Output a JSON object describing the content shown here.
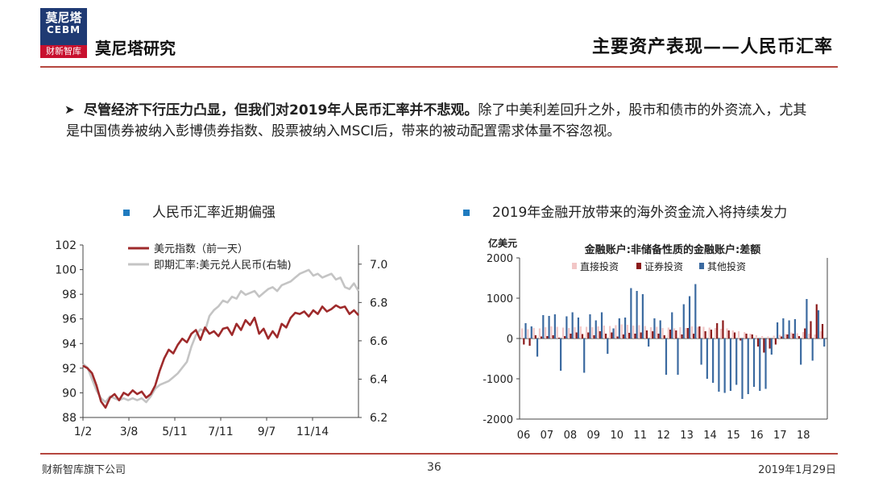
{
  "header": {
    "logo": {
      "line1": "莫尼塔",
      "line2": "CEBM",
      "line3": "财新智库"
    },
    "brand": "莫尼塔研究",
    "section_title": "主要资产表现——人民币汇率"
  },
  "bullet": {
    "bold": "尽管经济下行压力凸显，但我们对2019年人民币汇率并不悲观。",
    "rest": "除了中美利差回升之外，股市和债市的外资流入，尤其是中国债券被纳入彭博债券指数、股票被纳入MSCI后，带来的被动配置需求体量不容忽视。"
  },
  "chart_headers": {
    "left": "人民币汇率近期偏强",
    "right": "2019年金融开放带来的海外资金流入将持续发力"
  },
  "footer": {
    "left": "财新智库旗下公司",
    "page": "36",
    "date": "2019年1月29日"
  },
  "colors": {
    "accent_red": "#b5473f",
    "logo_blue": "#1f3a73",
    "bullet_square": "#1f7bbf"
  },
  "chart_data": [
    {
      "type": "line",
      "x_tick_labels": [
        "1/2",
        "3/8",
        "5/11",
        "7/11",
        "9/7",
        "11/14"
      ],
      "yleft_ticks": [
        "102",
        "100",
        "98",
        "96",
        "94",
        "92",
        "90",
        "88"
      ],
      "yleft_range": [
        88,
        102
      ],
      "yright_ticks": [
        "7.0",
        "6.8",
        "6.6",
        "6.4",
        "6.2"
      ],
      "yright_range": [
        6.2,
        7.1
      ],
      "legend_position": "top-left",
      "series": [
        {
          "name": "美元指数（前一天）",
          "axis": "left",
          "color": "#9e2a2b",
          "values": [
            92.2,
            92.0,
            91.6,
            90.6,
            89.3,
            88.8,
            89.6,
            89.9,
            89.4,
            90.0,
            89.8,
            90.2,
            89.9,
            90.1,
            89.6,
            89.9,
            90.6,
            91.8,
            92.8,
            93.5,
            93.2,
            93.9,
            94.4,
            94.1,
            94.8,
            95.1,
            94.3,
            95.3,
            94.8,
            95.0,
            94.6,
            95.2,
            95.3,
            94.7,
            95.6,
            95.1,
            95.9,
            95.5,
            96.1,
            94.8,
            95.2,
            94.4,
            95.0,
            94.5,
            95.6,
            95.3,
            96.1,
            96.5,
            96.4,
            96.6,
            96.2,
            96.7,
            96.4,
            97.0,
            96.6,
            96.8,
            97.1,
            96.9,
            97.0,
            96.4,
            96.7,
            96.3
          ]
        },
        {
          "name": "即期汇率:美元兑人民币(右轴)",
          "axis": "right",
          "color": "#c4c4c4",
          "values": [
            6.48,
            6.46,
            6.4,
            6.34,
            6.3,
            6.28,
            6.31,
            6.3,
            6.29,
            6.3,
            6.29,
            6.3,
            6.29,
            6.3,
            6.28,
            6.31,
            6.35,
            6.37,
            6.38,
            6.39,
            6.41,
            6.43,
            6.46,
            6.49,
            6.57,
            6.63,
            6.66,
            6.65,
            6.73,
            6.76,
            6.78,
            6.81,
            6.8,
            6.83,
            6.82,
            6.86,
            6.84,
            6.85,
            6.86,
            6.83,
            6.85,
            6.87,
            6.88,
            6.86,
            6.89,
            6.9,
            6.91,
            6.93,
            6.95,
            6.96,
            6.97,
            6.94,
            6.95,
            6.93,
            6.94,
            6.95,
            6.92,
            6.93,
            6.88,
            6.87,
            6.9,
            6.86
          ]
        }
      ]
    },
    {
      "type": "bar",
      "title": "金融账户:非储备性质的金融账户:差额",
      "ylabel": "亿美元",
      "ylim": [
        -2000,
        2000
      ],
      "y_ticks": [
        "2000",
        "1000",
        "0",
        "-1000",
        "-2000"
      ],
      "x_tick_labels": [
        "06",
        "07",
        "08",
        "09",
        "10",
        "11",
        "12",
        "13",
        "14",
        "15",
        "16",
        "17",
        "18"
      ],
      "legend_position": "top",
      "series": [
        {
          "name": "直接投资",
          "color": "#f2c6c6",
          "values": [
            250,
            230,
            260,
            250,
            280,
            300,
            290,
            270,
            260,
            280,
            300,
            290,
            280,
            300,
            320,
            310,
            330,
            350,
            340,
            320,
            330,
            310,
            280,
            290,
            260,
            270,
            250,
            280,
            260,
            300,
            280,
            290,
            270,
            260,
            240,
            250,
            200,
            180,
            160,
            120,
            80,
            60,
            50,
            70,
            90,
            110,
            150,
            130,
            160,
            120,
            100,
            180
          ]
        },
        {
          "name": "证券投资",
          "color": "#8b1a1a",
          "values": [
            -150,
            -180,
            80,
            50,
            60,
            80,
            20,
            60,
            120,
            150,
            110,
            150,
            80,
            180,
            120,
            150,
            50,
            100,
            140,
            120,
            150,
            200,
            180,
            120,
            80,
            220,
            200,
            100,
            260,
            120,
            300,
            180,
            220,
            380,
            450,
            200,
            150,
            -50,
            120,
            100,
            -200,
            -350,
            -250,
            -150,
            50,
            100,
            120,
            60,
            250,
            430,
            850,
            360
          ]
        },
        {
          "name": "其他投资",
          "color": "#3b6aa0",
          "values": [
            380,
            300,
            -450,
            580,
            560,
            600,
            -800,
            550,
            650,
            520,
            -850,
            600,
            450,
            650,
            -380,
            250,
            500,
            520,
            1250,
            1180,
            1100,
            -200,
            500,
            450,
            -900,
            650,
            -900,
            850,
            1050,
            1350,
            -650,
            -1000,
            -1100,
            -1320,
            -1350,
            -1300,
            -1150,
            -1500,
            -1380,
            -1200,
            -1300,
            -1250,
            -400,
            400,
            500,
            450,
            480,
            -650,
            980,
            -550,
            700,
            -200
          ]
        }
      ]
    }
  ]
}
